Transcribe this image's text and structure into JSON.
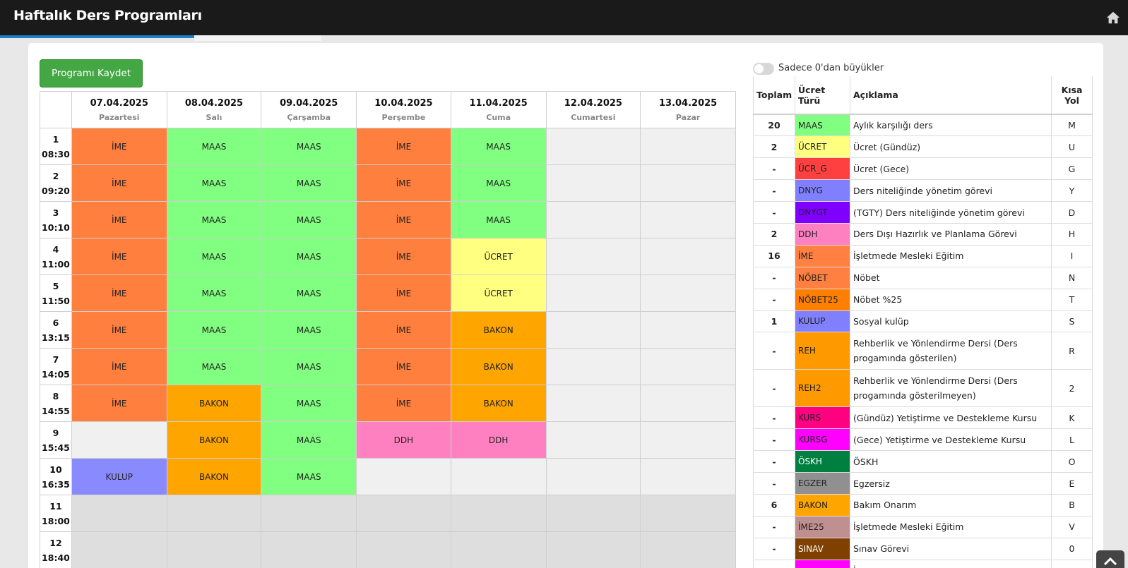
{
  "app": {
    "title": "Haftalık Ders Programları"
  },
  "toolbar": {
    "save_label": "Programı Kaydet"
  },
  "filter": {
    "label": "Sadece 0'dan büyükler"
  },
  "schedule": {
    "days": [
      {
        "date": "07.04.2025",
        "name": "Pazartesi"
      },
      {
        "date": "08.04.2025",
        "name": "Salı"
      },
      {
        "date": "09.04.2025",
        "name": "Çarşamba"
      },
      {
        "date": "10.04.2025",
        "name": "Perşembe"
      },
      {
        "date": "11.04.2025",
        "name": "Cuma"
      },
      {
        "date": "12.04.2025",
        "name": "Cumartesi"
      },
      {
        "date": "13.04.2025",
        "name": "Pazar"
      }
    ],
    "rows": [
      {
        "no": "1",
        "time": "08:30",
        "cells": [
          "İME",
          "MAAS",
          "MAAS",
          "İME",
          "MAAS",
          "",
          ""
        ]
      },
      {
        "no": "2",
        "time": "09:20",
        "cells": [
          "İME",
          "MAAS",
          "MAAS",
          "İME",
          "MAAS",
          "",
          ""
        ]
      },
      {
        "no": "3",
        "time": "10:10",
        "cells": [
          "İME",
          "MAAS",
          "MAAS",
          "İME",
          "MAAS",
          "",
          ""
        ]
      },
      {
        "no": "4",
        "time": "11:00",
        "cells": [
          "İME",
          "MAAS",
          "MAAS",
          "İME",
          "ÜCRET",
          "",
          ""
        ]
      },
      {
        "no": "5",
        "time": "11:50",
        "cells": [
          "İME",
          "MAAS",
          "MAAS",
          "İME",
          "ÜCRET",
          "",
          ""
        ]
      },
      {
        "no": "6",
        "time": "13:15",
        "cells": [
          "İME",
          "MAAS",
          "MAAS",
          "İME",
          "BAKON",
          "",
          ""
        ]
      },
      {
        "no": "7",
        "time": "14:05",
        "cells": [
          "İME",
          "MAAS",
          "MAAS",
          "İME",
          "BAKON",
          "",
          ""
        ]
      },
      {
        "no": "8",
        "time": "14:55",
        "cells": [
          "İME",
          "BAKON",
          "MAAS",
          "İME",
          "BAKON",
          "",
          ""
        ]
      },
      {
        "no": "9",
        "time": "15:45",
        "cells": [
          "",
          "BAKON",
          "MAAS",
          "DDH",
          "DDH",
          "",
          ""
        ]
      },
      {
        "no": "10",
        "time": "16:35",
        "cells": [
          "KULUP",
          "BAKON",
          "MAAS",
          "",
          "",
          "",
          ""
        ]
      },
      {
        "no": "11",
        "time": "18:00",
        "cells": [
          "",
          "",
          "",
          "",
          "",
          "",
          ""
        ]
      },
      {
        "no": "12",
        "time": "18:40",
        "cells": [
          "",
          "",
          "",
          "",
          "",
          "",
          ""
        ]
      }
    ]
  },
  "legend": {
    "headers": {
      "toplam": "Toplam",
      "tur": "Ücret Türü",
      "aciklama": "Açıklama",
      "kisa": "Kısa Yol"
    },
    "items": [
      {
        "toplam": "20",
        "code": "MAAS",
        "desc": "Aylık karşılığı ders",
        "key": "M",
        "color": "#80ff80",
        "text": "#222"
      },
      {
        "toplam": "2",
        "code": "ÜCRET",
        "desc": "Ücret (Gündüz)",
        "key": "U",
        "color": "#ffff80",
        "text": "#222"
      },
      {
        "toplam": "-",
        "code": "ÜCR_G",
        "desc": "Ücret (Gece)",
        "key": "G",
        "color": "#ff4040",
        "text": "#222"
      },
      {
        "toplam": "-",
        "code": "DNYG",
        "desc": "Ders niteliğinde yönetim görevi",
        "key": "Y",
        "color": "#8080ff",
        "text": "#222"
      },
      {
        "toplam": "-",
        "code": "DNYGT",
        "desc": "(TGTY) Ders niteliğinde yönetim görevi",
        "key": "D",
        "color": "#8000ff",
        "text": "#222"
      },
      {
        "toplam": "2",
        "code": "DDH",
        "desc": "Ders Dışı Hazırlık ve Planlama Görevi",
        "key": "H",
        "color": "#ff80c0",
        "text": "#222"
      },
      {
        "toplam": "16",
        "code": "İME",
        "desc": "İşletmede Mesleki Eğitim",
        "key": "I",
        "color": "#ff8040",
        "text": "#222"
      },
      {
        "toplam": "-",
        "code": "NÖBET",
        "desc": "Nöbet",
        "key": "N",
        "color": "#ff8040",
        "text": "#222"
      },
      {
        "toplam": "-",
        "code": "NÖBET25",
        "desc": "Nöbet %25",
        "key": "T",
        "color": "#ff8000",
        "text": "#222"
      },
      {
        "toplam": "1",
        "code": "KULUP",
        "desc": "Sosyal kulüp",
        "key": "S",
        "color": "#8080ff",
        "text": "#222"
      },
      {
        "toplam": "-",
        "code": "REH",
        "desc": "Rehberlik ve Yönlendirme Dersi (Ders progamında gösterilen)",
        "key": "R",
        "color": "#ff9900",
        "text": "#222",
        "tall": true
      },
      {
        "toplam": "-",
        "code": "REH2",
        "desc": "Rehberlik ve Yönlendirme Dersi (Ders progamında gösterilmeyen)",
        "key": "2",
        "color": "#ff9900",
        "text": "#222",
        "tall": true
      },
      {
        "toplam": "-",
        "code": "KURS",
        "desc": "(Gündüz) Yetiştirme ve Destekleme Kursu",
        "key": "K",
        "color": "#ff0080",
        "text": "#222"
      },
      {
        "toplam": "-",
        "code": "KURSG",
        "desc": "(Gece) Yetiştirme ve Destekleme Kursu",
        "key": "L",
        "color": "#ff00ff",
        "text": "#222"
      },
      {
        "toplam": "-",
        "code": "ÖSKH",
        "desc": "ÖSKH",
        "key": "O",
        "color": "#008040",
        "text": "#fff"
      },
      {
        "toplam": "-",
        "code": "EGZER",
        "desc": "Egzersiz",
        "key": "E",
        "color": "#909090",
        "text": "#222"
      },
      {
        "toplam": "6",
        "code": "BAKON",
        "desc": "Bakım Onarım",
        "key": "B",
        "color": "#ffa500",
        "text": "#222"
      },
      {
        "toplam": "-",
        "code": "İME25",
        "desc": "İşletmede Mesleki Eğitim",
        "key": "V",
        "color": "#c09090",
        "text": "#222"
      },
      {
        "toplam": "-",
        "code": "SINAV",
        "desc": "Sınav Görevi",
        "key": "0",
        "color": "#804000",
        "text": "#fff"
      },
      {
        "toplam": "",
        "code": "",
        "desc": "İ",
        "key": "",
        "color": "#ff00ff",
        "text": "#222"
      }
    ]
  },
  "colors": {
    "MAAS": "#80ff80",
    "ÜCRET": "#ffff80",
    "İME": "#ff7f3f",
    "BAKON": "#ffa500",
    "DDH": "#ff80c0",
    "KULUP": "#8a8aff"
  },
  "icons": {
    "home": "home-icon",
    "scroll_top": "chevron-up-icon"
  }
}
